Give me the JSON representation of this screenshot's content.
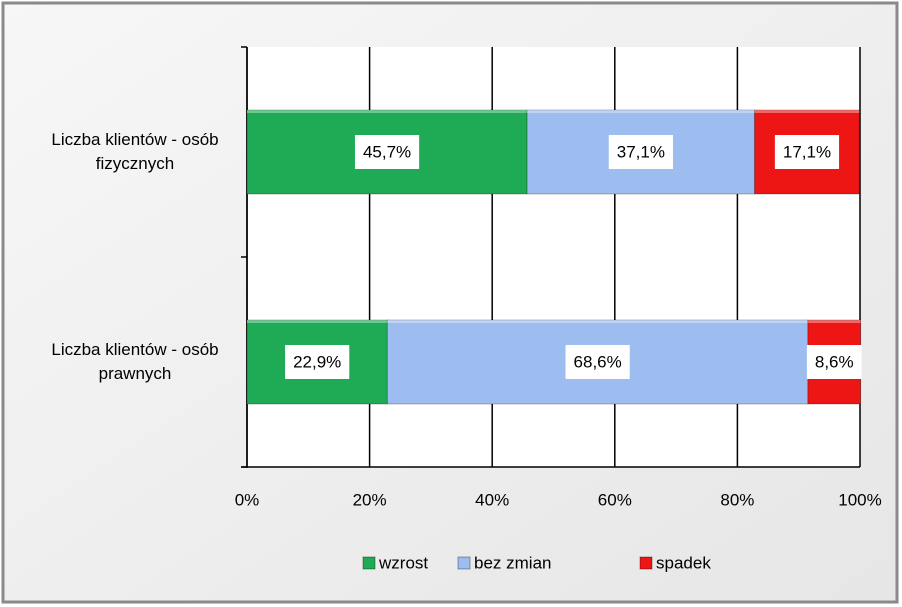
{
  "chart_data": {
    "type": "bar",
    "orientation": "horizontal",
    "stacked": true,
    "categories": [
      "Liczba klientów - osób fizycznych",
      "Liczba klientów - osób prawnych"
    ],
    "series": [
      {
        "name": "wzrost",
        "color": "#1faa55",
        "values": [
          45.7,
          22.9
        ],
        "value_labels": [
          "45,7%",
          "22,9%"
        ]
      },
      {
        "name": "bez zmian",
        "color": "#9dbdf0",
        "values": [
          37.1,
          68.6
        ],
        "value_labels": [
          "37,1%",
          "68,6%"
        ]
      },
      {
        "name": "spadek",
        "color": "#ee1515",
        "values": [
          17.1,
          8.6
        ],
        "value_labels": [
          "17,1%",
          "8,6%"
        ]
      }
    ],
    "xlim": [
      0,
      100
    ],
    "xticks": [
      {
        "value": 0,
        "label": "0%"
      },
      {
        "value": 20,
        "label": "20%"
      },
      {
        "value": 40,
        "label": "40%"
      },
      {
        "value": 60,
        "label": "60%"
      },
      {
        "value": 80,
        "label": "80%"
      },
      {
        "value": 100,
        "label": "100%"
      }
    ],
    "grid": true,
    "legend": "bottom"
  }
}
